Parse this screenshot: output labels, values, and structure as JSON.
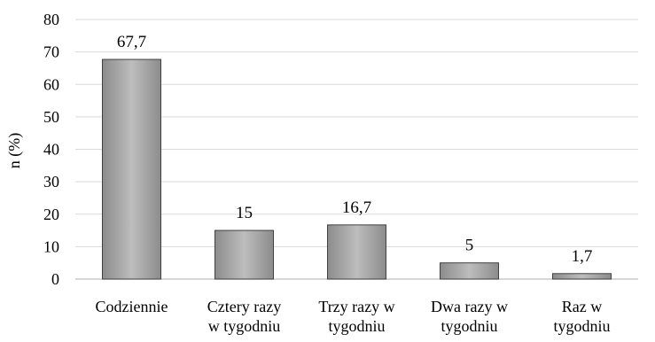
{
  "chart_data": {
    "type": "bar",
    "title": "",
    "xlabel": "",
    "ylabel": "n (%)",
    "ylim": [
      0,
      80
    ],
    "yticks": [
      0,
      10,
      20,
      30,
      40,
      50,
      60,
      70,
      80
    ],
    "grid": true,
    "legend": "none",
    "categories": [
      [
        "Codziennie"
      ],
      [
        "Cztery razy",
        "w tygodniu"
      ],
      [
        "Trzy razy w",
        "tygodniu"
      ],
      [
        "Dwa razy w",
        "tygodniu"
      ],
      [
        "Raz w",
        "tygodniu"
      ]
    ],
    "values": [
      67.7,
      15,
      16.7,
      5,
      1.7
    ],
    "data_labels": [
      "67,7",
      "15",
      "16,7",
      "5",
      "1,7"
    ],
    "colors": {
      "bar_fill_light": "#bdbdbd",
      "bar_fill_dark": "#8c8c8c",
      "bar_stroke": "#404040",
      "grid": "#d9d9d9",
      "axis": "#bfbfbf"
    }
  }
}
